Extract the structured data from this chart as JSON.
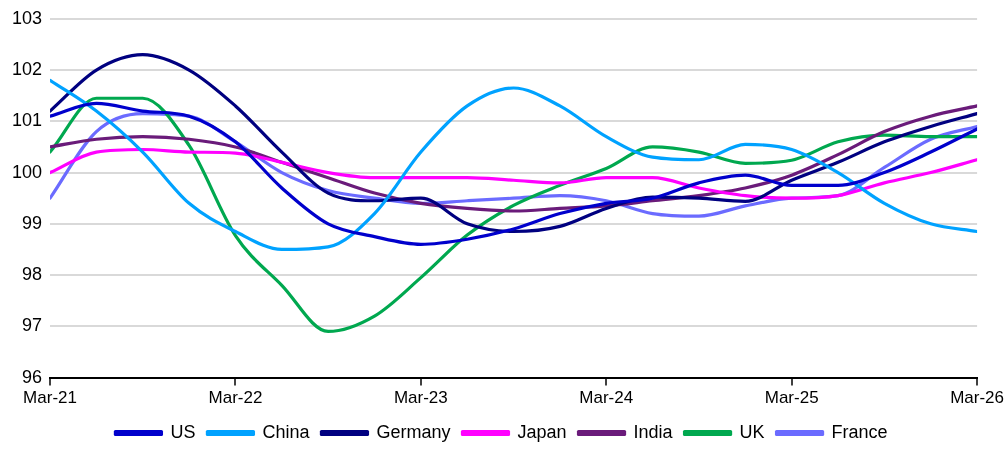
{
  "chart_data": {
    "type": "line",
    "x": [
      "2021-03",
      "2021-06",
      "2021-09",
      "2021-12",
      "2022-03",
      "2022-06",
      "2022-09",
      "2022-12",
      "2023-03",
      "2023-06",
      "2023-09",
      "2023-12",
      "2024-03",
      "2024-06",
      "2024-09",
      "2024-12",
      "2025-03",
      "2025-06",
      "2025-09",
      "2025-12",
      "2026-03"
    ],
    "xlim": [
      "2021-03",
      "2026-03"
    ],
    "xticks": [
      {
        "value": "2021-03",
        "label": "Mar-21"
      },
      {
        "value": "2022-03",
        "label": "Mar-22"
      },
      {
        "value": "2023-03",
        "label": "Mar-23"
      },
      {
        "value": "2024-03",
        "label": "Mar-24"
      },
      {
        "value": "2025-03",
        "label": "Mar-25"
      },
      {
        "value": "2026-03",
        "label": "Mar-26"
      }
    ],
    "ylim": [
      96,
      103
    ],
    "yticks": [
      96,
      97,
      98,
      99,
      100,
      101,
      102,
      103
    ],
    "grid": "y",
    "legend": "bottom",
    "marker": "none",
    "line_style": "solid",
    "series": [
      {
        "name": "US",
        "color": "#0000cc",
        "values": [
          101.1,
          101.35,
          101.2,
          101.1,
          100.6,
          99.7,
          99.0,
          98.75,
          98.6,
          98.7,
          98.9,
          99.2,
          99.4,
          99.5,
          99.8,
          99.95,
          99.75,
          99.75,
          100.0,
          100.4,
          100.85
        ]
      },
      {
        "name": "China",
        "color": "#00a2ff",
        "values": [
          101.8,
          101.2,
          100.4,
          99.4,
          98.85,
          98.5,
          98.55,
          99.2,
          100.4,
          101.3,
          101.65,
          101.3,
          100.7,
          100.3,
          100.25,
          100.55,
          100.45,
          100.0,
          99.4,
          99.0,
          98.85
        ]
      },
      {
        "name": "Germany",
        "color": "#000080",
        "values": [
          101.2,
          102.0,
          102.3,
          102.0,
          101.3,
          100.4,
          99.6,
          99.45,
          99.5,
          99.0,
          98.85,
          98.95,
          99.3,
          99.52,
          99.5,
          99.44,
          99.85,
          100.2,
          100.6,
          100.9,
          101.15
        ]
      },
      {
        "name": "Japan",
        "color": "#ff00ff",
        "values": [
          100.0,
          100.4,
          100.45,
          100.4,
          100.38,
          100.2,
          100.0,
          99.9,
          99.9,
          99.9,
          99.85,
          99.8,
          99.9,
          99.9,
          99.7,
          99.55,
          99.5,
          99.55,
          99.8,
          100.0,
          100.25
        ]
      },
      {
        "name": "India",
        "color": "#6a1b7a",
        "values": [
          100.5,
          100.65,
          100.7,
          100.65,
          100.5,
          100.2,
          99.9,
          99.6,
          99.4,
          99.3,
          99.25,
          99.3,
          99.35,
          99.45,
          99.55,
          99.7,
          99.95,
          100.35,
          100.8,
          101.1,
          101.3
        ]
      },
      {
        "name": "UK",
        "color": "#00a84f",
        "values": [
          100.4,
          101.45,
          101.45,
          100.53,
          98.77,
          97.8,
          96.9,
          97.2,
          97.95,
          98.78,
          99.36,
          99.75,
          100.08,
          100.5,
          100.4,
          100.18,
          100.24,
          100.6,
          100.73,
          100.7,
          100.7
        ]
      },
      {
        "name": "France",
        "color": "#6b6bff",
        "values": [
          99.5,
          100.8,
          101.15,
          101.1,
          100.6,
          100.0,
          99.65,
          99.5,
          99.4,
          99.45,
          99.5,
          99.55,
          99.45,
          99.2,
          99.15,
          99.35,
          99.5,
          99.55,
          100.1,
          100.65,
          100.9
        ]
      }
    ]
  }
}
